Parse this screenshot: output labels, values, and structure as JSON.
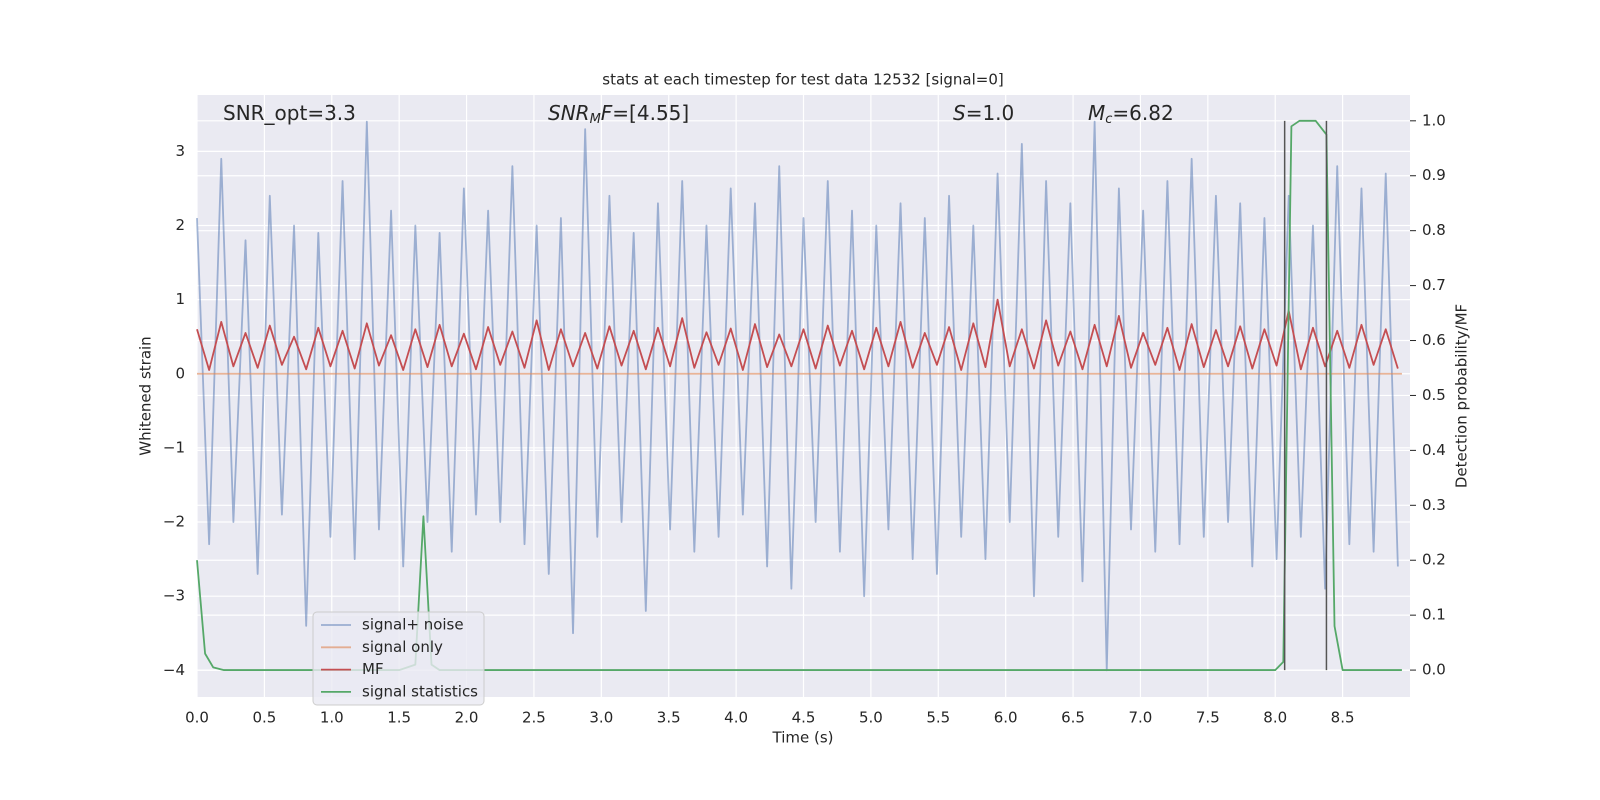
{
  "chart_data": {
    "type": "line",
    "title": "stats at each timestep for test data 12532 [signal=0]",
    "xlabel": "Time (s)",
    "ylabel": "Whitened strain",
    "y2label": "Detection probability/MF",
    "annotations": [
      [
        {
          "text": "SNR_opt=3.3"
        }
      ],
      [
        {
          "text": "SNR",
          "italic": true
        },
        {
          "text": "M",
          "italic": true,
          "sub": true
        },
        {
          "text": "F",
          "italic": true
        },
        {
          "text": "=[4.55]"
        }
      ],
      [
        {
          "text": "S",
          "italic": true
        },
        {
          "text": "=1.0"
        }
      ],
      [
        {
          "text": "M",
          "italic": true
        },
        {
          "text": "c",
          "italic": true,
          "sub": true
        },
        {
          "text": "=6.82"
        }
      ]
    ],
    "grid": true,
    "legend": "lower left",
    "xlim": [
      0,
      9.0
    ],
    "ylim": [
      -4.36,
      3.76
    ],
    "y2lim": [
      -0.049,
      1.047
    ],
    "xticks": [
      {
        "value": 0,
        "label": "0.0"
      },
      0.5,
      {
        "value": 1,
        "label": "1.0"
      },
      1.5,
      {
        "value": 2,
        "label": "2.0"
      },
      2.5,
      {
        "value": 3,
        "label": "3.0"
      },
      3.5,
      {
        "value": 4,
        "label": "4.0"
      },
      4.5,
      {
        "value": 5,
        "label": "5.0"
      },
      5.5,
      {
        "value": 6,
        "label": "6.0"
      },
      6.5,
      {
        "value": 7,
        "label": "7.0"
      },
      7.5,
      {
        "value": 8,
        "label": "8.0"
      },
      8.5
    ],
    "yticks": [
      {
        "value": -4,
        "label": "−4"
      },
      {
        "value": -3,
        "label": "−3"
      },
      {
        "value": -2,
        "label": "−2"
      },
      {
        "value": -1,
        "label": "−1"
      },
      0,
      1,
      2,
      3
    ],
    "y2ticks": [
      {
        "value": 0,
        "label": "0.0"
      },
      0.1,
      0.2,
      0.3,
      0.4,
      0.5,
      0.6,
      0.7,
      0.8,
      0.9,
      {
        "value": 1,
        "label": "1.0"
      }
    ],
    "x": [
      0,
      0.09,
      0.18,
      0.27,
      0.36,
      0.45,
      0.54,
      0.63,
      0.72,
      0.81,
      0.9,
      0.99,
      1.08,
      1.17,
      1.26,
      1.35,
      1.44,
      1.53,
      1.62,
      1.71,
      1.8,
      1.89,
      1.98,
      2.07,
      2.16,
      2.25,
      2.34,
      2.43,
      2.52,
      2.61,
      2.7,
      2.79,
      2.88,
      2.97,
      3.06,
      3.15,
      3.24,
      3.33,
      3.42,
      3.51,
      3.6,
      3.69,
      3.78,
      3.87,
      3.96,
      4.05,
      4.14,
      4.23,
      4.32,
      4.41,
      4.5,
      4.59,
      4.68,
      4.77,
      4.86,
      4.95,
      5.04,
      5.13,
      5.22,
      5.31,
      5.4,
      5.49,
      5.58,
      5.67,
      5.76,
      5.85,
      5.94,
      6.03,
      6.12,
      6.21,
      6.3,
      6.39,
      6.48,
      6.57,
      6.66,
      6.75,
      6.84,
      6.93,
      7.02,
      7.11,
      7.2,
      7.29,
      7.38,
      7.47,
      7.56,
      7.65,
      7.74,
      7.83,
      7.92,
      8.01,
      8.1,
      8.19,
      8.28,
      8.37,
      8.46,
      8.55,
      8.64,
      8.73,
      8.82,
      8.91
    ],
    "series": [
      {
        "name": "signal+ noise",
        "color": "#4c72b0",
        "opacity": 0.5,
        "values": [
          2.1,
          -2.3,
          2.9,
          -2.0,
          1.8,
          -2.7,
          2.4,
          -1.9,
          2.0,
          -3.4,
          1.9,
          -2.2,
          2.6,
          -2.5,
          3.4,
          -2.1,
          2.2,
          -2.6,
          2.0,
          -2.0,
          1.9,
          -2.4,
          2.5,
          -1.9,
          2.2,
          -2.0,
          2.8,
          -2.3,
          2.0,
          -2.7,
          2.1,
          -3.5,
          3.3,
          -2.2,
          2.4,
          -2.0,
          1.9,
          -3.2,
          2.3,
          -2.1,
          2.6,
          -2.4,
          2.0,
          -2.2,
          2.5,
          -1.9,
          2.3,
          -2.6,
          2.8,
          -2.9,
          2.1,
          -2.0,
          2.6,
          -2.4,
          2.2,
          -3.0,
          2.0,
          -2.1,
          2.3,
          -2.5,
          2.1,
          -2.7,
          2.4,
          -2.2,
          2.0,
          -2.5,
          2.7,
          -2.0,
          3.1,
          -3.0,
          2.6,
          -2.2,
          2.3,
          -2.8,
          3.4,
          -4.0,
          2.5,
          -2.1,
          2.2,
          -2.4,
          2.6,
          -2.3,
          2.9,
          -2.2,
          2.4,
          -2.0,
          2.3,
          -2.6,
          2.1,
          -2.5,
          2.4,
          -2.2,
          2.0,
          -2.9,
          2.8,
          -2.3,
          2.5,
          -2.4,
          2.7,
          -2.6
        ]
      },
      {
        "name": "signal only",
        "color": "#dd8452",
        "opacity": 0.6,
        "x": [
          0,
          8.94
        ],
        "values": [
          0,
          0
        ]
      },
      {
        "name": "MF",
        "color": "#c44e52",
        "values": [
          0.6,
          0.05,
          0.7,
          0.1,
          0.55,
          0.08,
          0.65,
          0.12,
          0.5,
          0.06,
          0.62,
          0.1,
          0.58,
          0.07,
          0.68,
          0.11,
          0.52,
          0.05,
          0.6,
          0.09,
          0.66,
          0.1,
          0.54,
          0.06,
          0.63,
          0.12,
          0.57,
          0.08,
          0.72,
          0.05,
          0.6,
          0.1,
          0.55,
          0.07,
          0.64,
          0.11,
          0.58,
          0.06,
          0.62,
          0.1,
          0.75,
          0.08,
          0.56,
          0.12,
          0.61,
          0.05,
          0.67,
          0.09,
          0.53,
          0.1,
          0.6,
          0.07,
          0.65,
          0.11,
          0.58,
          0.06,
          0.62,
          0.1,
          0.7,
          0.08,
          0.55,
          0.12,
          0.63,
          0.05,
          0.68,
          0.09,
          1.0,
          0.1,
          0.6,
          0.07,
          0.72,
          0.11,
          0.57,
          0.06,
          0.66,
          0.1,
          0.78,
          0.08,
          0.55,
          0.12,
          0.62,
          0.05,
          0.67,
          0.09,
          0.59,
          0.1,
          0.64,
          0.07,
          0.6,
          0.11,
          0.85,
          0.06,
          0.62,
          0.1,
          0.58,
          0.08,
          0.66,
          0.12,
          0.6,
          0.07
        ]
      },
      {
        "name": "signal statistics",
        "color": "#55a868",
        "axis": "y2",
        "x": [
          0,
          0.06,
          0.12,
          0.2,
          1.5,
          1.62,
          1.68,
          1.74,
          1.8,
          8.0,
          8.06,
          8.12,
          8.18,
          8.3,
          8.38,
          8.44,
          8.5,
          8.94
        ],
        "values": [
          0.2,
          0.03,
          0.005,
          0,
          0,
          0.01,
          0.28,
          0.01,
          0,
          0,
          0.015,
          0.99,
          1.0,
          1.0,
          0.975,
          0.08,
          0,
          0
        ]
      }
    ],
    "vlines": {
      "color": "#555555",
      "x": [
        8.07,
        8.38
      ],
      "from": 0,
      "to": 1
    }
  }
}
